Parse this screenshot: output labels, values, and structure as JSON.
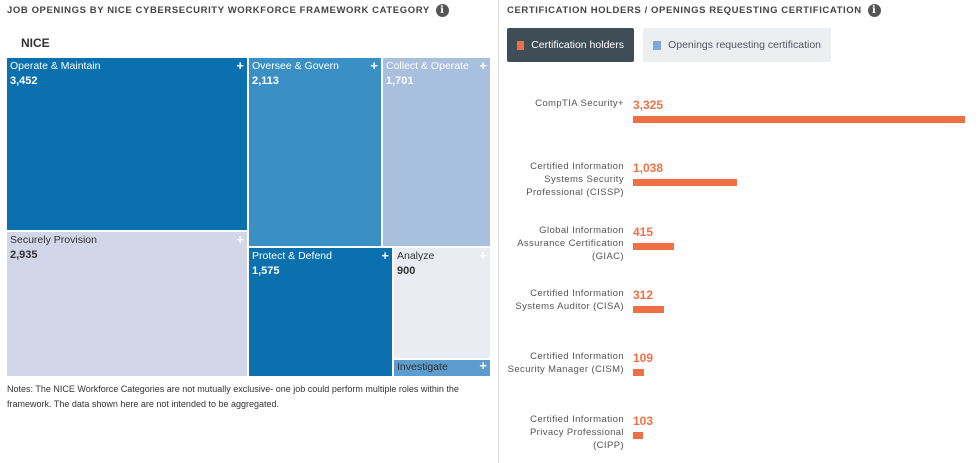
{
  "left_panel": {
    "title": "JOB OPENINGS BY NICE CYBERSECURITY WORKFORCE FRAMEWORK CATEGORY",
    "root_label": "NICE",
    "notes": "Notes: The NICE Workforce Categories are not mutually exclusive- one job could perform multiple roles within the framework. The data shown here are not intended to be aggregated."
  },
  "right_panel": {
    "title": "CERTIFICATION HOLDERS / OPENINGS REQUESTING CERTIFICATION",
    "legend": {
      "holders_label": "Certification holders",
      "openings_label": "Openings requesting certification"
    }
  },
  "colors": {
    "holders": "#f07046",
    "dark_blue": "#0b70ae",
    "mid_blue": "#3a8fc4",
    "light_blue": "#a8bfde",
    "lavender": "#d3d5e8",
    "pale": "#ebebf2",
    "steel_blue": "#5d9ccf",
    "legend_active_bg": "#3f4d57",
    "legend_inactive_bg": "#eceef0",
    "openings_swatch": "#7fa9d6"
  },
  "chart_data": [
    {
      "type": "treemap",
      "title": "JOB OPENINGS BY NICE CYBERSECURITY WORKFORCE FRAMEWORK CATEGORY",
      "root": "NICE",
      "items": [
        {
          "name": "Operate & Maintain",
          "value": 3452,
          "value_label": "3,452",
          "color": "#0b70ae",
          "text_color": "#ffffff"
        },
        {
          "name": "Oversee & Govern",
          "value": 2113,
          "value_label": "2,113",
          "color": "#3a8fc4",
          "text_color": "#ffffff"
        },
        {
          "name": "Collect & Operate",
          "value": 1701,
          "value_label": "1,701",
          "color": "#a8bfde",
          "text_color": "#ffffff"
        },
        {
          "name": "Securely Provision",
          "value": 2935,
          "value_label": "2,935",
          "color": "#d3d5e8",
          "text_color": "#333333"
        },
        {
          "name": "Protect & Defend",
          "value": 1575,
          "value_label": "1,575",
          "color": "#0b70ae",
          "text_color": "#ffffff"
        },
        {
          "name": "Analyze",
          "value": 900,
          "value_label": "900",
          "color": "#ebebf2",
          "text_color": "#333333"
        },
        {
          "name": "Investigate",
          "value": null,
          "value_label": "",
          "color": "#5d9ccf",
          "text_color": "#333333"
        }
      ]
    },
    {
      "type": "bar",
      "orientation": "horizontal",
      "title": "CERTIFICATION HOLDERS / OPENINGS REQUESTING CERTIFICATION",
      "legend": [
        "Certification holders",
        "Openings requesting certification"
      ],
      "categories": [
        "CompTIA Security+",
        "Certified Information Systems Security Professional (CISSP)",
        "Global Information Assurance Certification (GIAC)",
        "Certified Information Systems Auditor (CISA)",
        "Certified Information Security Manager (CISM)",
        "Certified Information Privacy Professional (CIPP)"
      ],
      "category_lines": [
        [
          "CompTIA Security+"
        ],
        [
          "Certified Information",
          "Systems Security",
          "Professional (CISSP)"
        ],
        [
          "Global Information",
          "Assurance Certification",
          "(GIAC)"
        ],
        [
          "Certified Information",
          "Systems Auditor (CISA)"
        ],
        [
          "Certified Information",
          "Security Manager (CISM)"
        ],
        [
          "Certified Information",
          "Privacy Professional",
          "(CIPP)"
        ]
      ],
      "series": [
        {
          "name": "Certification holders",
          "values": [
            3325,
            1038,
            415,
            312,
            109,
            103
          ],
          "value_labels": [
            "3,325",
            "1,038",
            "415",
            "312",
            "109",
            "103"
          ],
          "color": "#f07046"
        }
      ],
      "xlim": [
        0,
        3325
      ]
    }
  ]
}
